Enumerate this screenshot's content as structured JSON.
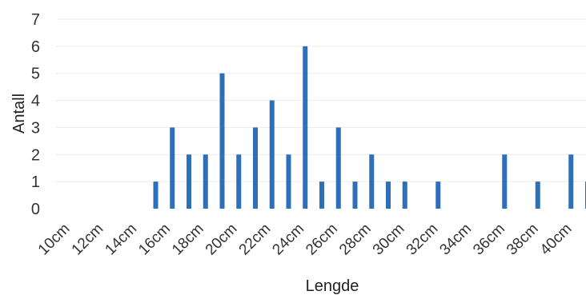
{
  "chart_data": {
    "type": "bar",
    "title": "",
    "xlabel": "Lengde",
    "ylabel": "Antall",
    "ylim": [
      0,
      7
    ],
    "yticks": [
      0,
      1,
      2,
      3,
      4,
      5,
      6,
      7
    ],
    "grid": true,
    "legend": "none",
    "colors": {
      "bar": "#2e6fba",
      "grid": "#ececec"
    },
    "xtick_labels": [
      "10cm",
      "12cm",
      "14cm",
      "16cm",
      "18cm",
      "20cm",
      "22cm",
      "24cm",
      "26cm",
      "28cm",
      "30cm",
      "32cm",
      "34cm",
      "36cm",
      "38cm",
      "40cm"
    ],
    "series": [
      {
        "values": [
          0,
          0,
          0,
          0,
          0,
          0,
          1,
          3,
          2,
          2,
          5,
          2,
          3,
          4,
          2,
          6,
          1,
          3,
          1,
          2,
          1,
          1,
          0,
          1,
          0,
          0,
          0,
          2,
          0,
          1,
          0,
          2,
          1
        ]
      }
    ]
  }
}
